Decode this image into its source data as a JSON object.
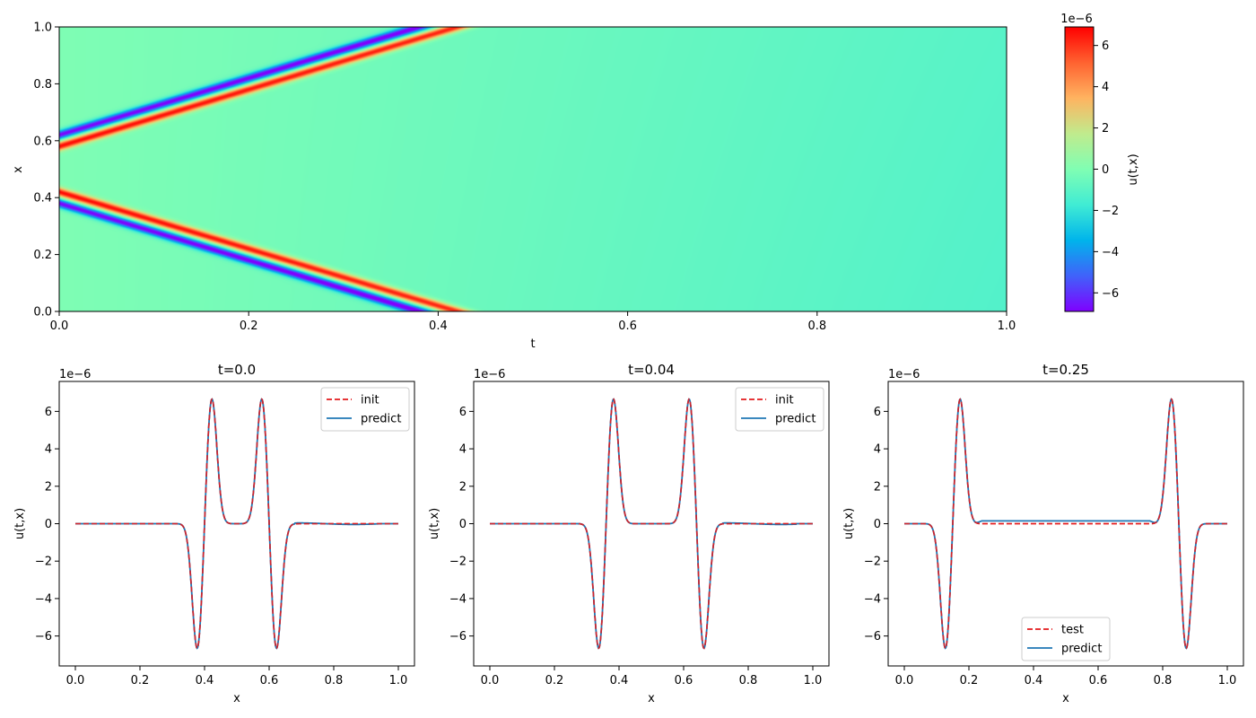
{
  "chart_data": [
    {
      "type": "heatmap",
      "xlabel": "t",
      "ylabel": "x",
      "xlim": [
        0,
        1
      ],
      "ylim": [
        0,
        1
      ],
      "xticks": [
        "0.0",
        "0.2",
        "0.4",
        "0.6",
        "0.8",
        "1.0"
      ],
      "yticks": [
        "0.0",
        "0.2",
        "0.4",
        "0.6",
        "0.8",
        "1.0"
      ],
      "colormap": "rainbow",
      "colorbar": {
        "label": "u(t,x)",
        "scale_label": "1e−6",
        "range": [
          -6.9,
          6.9
        ],
        "ticks": [
          "−6",
          "−4",
          "−2",
          "0",
          "2",
          "4",
          "6"
        ],
        "tick_values": [
          -6,
          -4,
          -2,
          0,
          2,
          4,
          6
        ]
      },
      "field": {
        "description_values": "Two traveling wave packets, centers 0.6 and 0.4 at t=0, moving outward with speed 1; background baseline ~ -1e-6 growing with t",
        "initial_centers": [
          0.4,
          0.6
        ],
        "speed": 1.0
      }
    },
    {
      "type": "line",
      "title": "t=0.0",
      "xlabel": "x",
      "ylabel": "u(t,x)",
      "scale_label": "1e−6",
      "xlim": [
        -0.05,
        1.05
      ],
      "ylim": [
        -7.6,
        7.6
      ],
      "xticks": [
        "0.0",
        "0.2",
        "0.4",
        "0.6",
        "0.8",
        "1.0"
      ],
      "yticks": [
        "−6",
        "−4",
        "−2",
        "0",
        "2",
        "4",
        "6"
      ],
      "legend": "upper-right",
      "centers": [
        0.4,
        0.6
      ],
      "series": [
        {
          "name": "init",
          "style": "dashed",
          "color": "#e31a1c"
        },
        {
          "name": "predict",
          "style": "solid",
          "color": "#1f77b4"
        }
      ],
      "peak": 6.8,
      "trough": -6.8
    },
    {
      "type": "line",
      "title": "t=0.04",
      "xlabel": "x",
      "ylabel": "u(t,x)",
      "scale_label": "1e−6",
      "xlim": [
        -0.05,
        1.05
      ],
      "ylim": [
        -7.6,
        7.6
      ],
      "xticks": [
        "0.0",
        "0.2",
        "0.4",
        "0.6",
        "0.8",
        "1.0"
      ],
      "yticks": [
        "−6",
        "−4",
        "−2",
        "0",
        "2",
        "4",
        "6"
      ],
      "legend": "upper-right",
      "centers": [
        0.36,
        0.64
      ],
      "series": [
        {
          "name": "init",
          "style": "dashed",
          "color": "#e31a1c"
        },
        {
          "name": "predict",
          "style": "solid",
          "color": "#1f77b4"
        }
      ],
      "peak": 6.8,
      "trough": -6.8
    },
    {
      "type": "line",
      "title": "t=0.25",
      "xlabel": "x",
      "ylabel": "u(t,x)",
      "scale_label": "1e−6",
      "xlim": [
        -0.05,
        1.05
      ],
      "ylim": [
        -7.6,
        7.6
      ],
      "xticks": [
        "0.0",
        "0.2",
        "0.4",
        "0.6",
        "0.8",
        "1.0"
      ],
      "yticks": [
        "−6",
        "−4",
        "−2",
        "0",
        "2",
        "4",
        "6"
      ],
      "legend": "lower-center",
      "centers": [
        0.15,
        0.85
      ],
      "series": [
        {
          "name": "test",
          "style": "dashed",
          "color": "#e31a1c"
        },
        {
          "name": "predict",
          "style": "solid",
          "color": "#1f77b4"
        }
      ],
      "peak": 6.8,
      "trough": -6.8,
      "predict_plateau": 0.15
    }
  ]
}
